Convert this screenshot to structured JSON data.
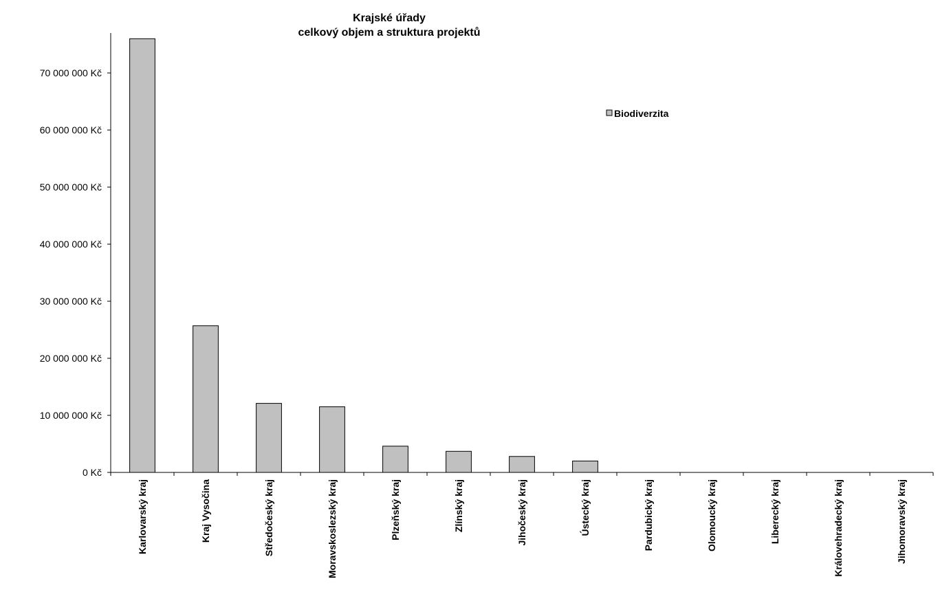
{
  "chart_data": {
    "type": "bar",
    "title": [
      "Krajské úřady",
      "celkový objem a struktura projektů"
    ],
    "xlabel": "",
    "ylabel": "",
    "ylim": [
      0,
      77000000
    ],
    "y_ticks": [
      0,
      10000000,
      20000000,
      30000000,
      40000000,
      50000000,
      60000000,
      70000000
    ],
    "y_tick_labels": [
      "0 Kč",
      "10 000 000 Kč",
      "20 000 000 Kč",
      "30 000 000 Kč",
      "40 000 000 Kč",
      "50 000 000 Kč",
      "60 000 000 Kč",
      "70 000 000 Kč"
    ],
    "categories": [
      "Karlovarský kraj",
      "Kraj Vysočina",
      "Středočeský kraj",
      "Moravskoslezský kraj",
      "Plzeňský kraj",
      "Zlínský kraj",
      "Jihočeský kraj",
      "Ústecký kraj",
      "Pardubický kraj",
      "Olomoucký kraj",
      "Liberecký kraj",
      "Královehradecký kraj",
      "Jihomoravský kraj"
    ],
    "series": [
      {
        "name": "Biodiverzita",
        "color": "#c0c0c0",
        "values": [
          76000000,
          25700000,
          12100000,
          11500000,
          4600000,
          3700000,
          2800000,
          2000000,
          0,
          0,
          0,
          0,
          0
        ]
      }
    ],
    "grid": false,
    "legend_position": "right"
  }
}
